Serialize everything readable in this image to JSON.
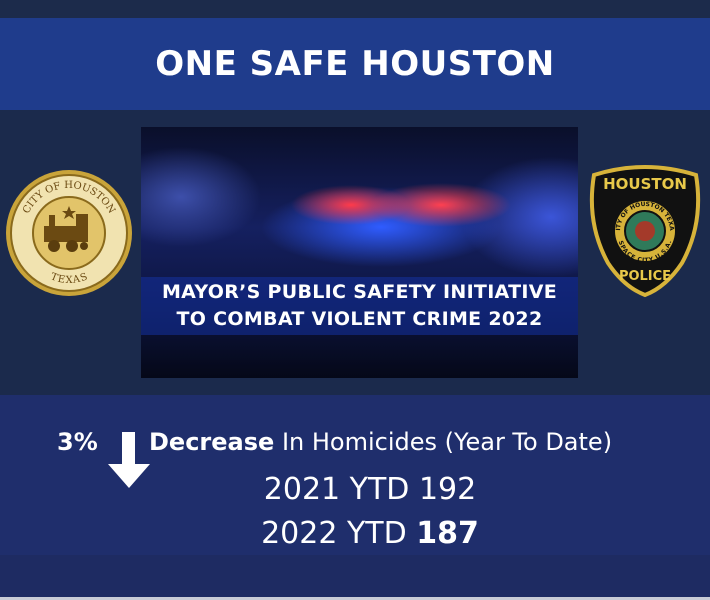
{
  "header": {
    "title": "ONE SAFE HOUSTON"
  },
  "banner": {
    "lines": [
      "MAYOR’S PUBLIC SAFETY INITIATIVE",
      "TO COMBAT VIOLENT CRIME 2022"
    ]
  },
  "city_seal": {
    "top": "CITY OF HOUSTON",
    "bottom": "TEXAS"
  },
  "police_badge": {
    "top": "HOUSTON",
    "bottom": "POLICE",
    "ring_top": "CITY OF HOUSTON TEXAS",
    "ring_bottom": "SPACE CITY U.S.A."
  },
  "stats": {
    "change": "3%",
    "direction": "Decrease",
    "description": "In Homicides (Year To Date)",
    "rows": [
      {
        "label": "2021 YTD",
        "value": "192"
      },
      {
        "label": "2022 YTD",
        "value": "187"
      }
    ]
  }
}
